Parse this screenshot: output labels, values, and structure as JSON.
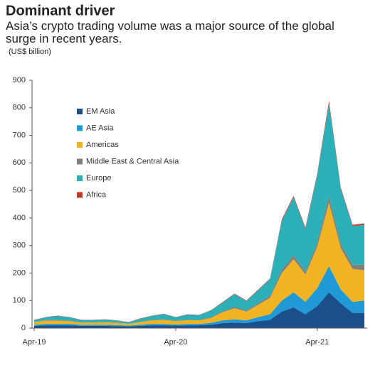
{
  "chart_data": {
    "type": "stacked_area",
    "title": "Dominant driver",
    "subtitle": "Asia’s crypto trading volume was a major source of the global surge in recent years.",
    "unit_label": "(US$ billion)",
    "categories": [
      "Apr-19",
      null,
      null,
      null,
      null,
      null,
      null,
      null,
      null,
      null,
      null,
      null,
      "Apr-20",
      null,
      null,
      null,
      null,
      null,
      null,
      null,
      null,
      null,
      null,
      null,
      "Apr-21",
      null,
      null,
      null,
      null
    ],
    "ylim": [
      0,
      900
    ],
    "yticks": [
      0,
      100,
      200,
      300,
      400,
      500,
      600,
      700,
      800,
      900
    ],
    "legend": "upper left",
    "series": [
      {
        "name": "EM Asia",
        "color": "#1b4f8a",
        "values": [
          8,
          10,
          10,
          10,
          8,
          8,
          8,
          7,
          6,
          8,
          10,
          10,
          9,
          10,
          10,
          12,
          18,
          20,
          18,
          25,
          30,
          60,
          75,
          50,
          80,
          130,
          90,
          55,
          55
        ]
      },
      {
        "name": "AE Asia",
        "color": "#1f9ad6",
        "values": [
          4,
          5,
          5,
          5,
          4,
          4,
          4,
          4,
          3,
          4,
          5,
          5,
          4,
          5,
          5,
          7,
          10,
          12,
          10,
          15,
          20,
          40,
          55,
          45,
          65,
          95,
          50,
          40,
          45
        ]
      },
      {
        "name": "Americas",
        "color": "#f0b323",
        "values": [
          10,
          12,
          12,
          10,
          8,
          8,
          9,
          8,
          6,
          10,
          13,
          15,
          12,
          14,
          13,
          18,
          30,
          40,
          32,
          45,
          60,
          100,
          120,
          100,
          150,
          230,
          150,
          120,
          110
        ]
      },
      {
        "name": "Middle East & Central Asia",
        "color": "#7f7f7f",
        "values": [
          1,
          2,
          2,
          2,
          1,
          1,
          1,
          1,
          1,
          1,
          2,
          2,
          2,
          2,
          2,
          3,
          4,
          5,
          4,
          6,
          8,
          12,
          15,
          10,
          15,
          25,
          15,
          15,
          20
        ]
      },
      {
        "name": "Europe",
        "color": "#2bb0b8",
        "values": [
          6,
          10,
          15,
          12,
          8,
          8,
          9,
          7,
          5,
          11,
          14,
          19,
          12,
          18,
          17,
          24,
          31,
          46,
          34,
          47,
          60,
          178,
          210,
          155,
          245,
          335,
          200,
          140,
          145
        ]
      },
      {
        "name": "Africa",
        "color": "#c0392b",
        "values": [
          1,
          1,
          1,
          1,
          1,
          1,
          1,
          1,
          1,
          1,
          1,
          1,
          1,
          1,
          1,
          1,
          2,
          2,
          2,
          2,
          2,
          5,
          5,
          5,
          5,
          10,
          5,
          5,
          5
        ]
      }
    ]
  }
}
